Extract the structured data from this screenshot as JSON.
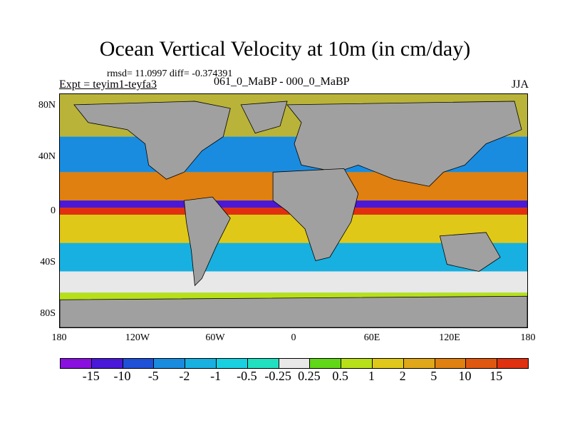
{
  "title": "Ocean Vertical Velocity at 10m (in cm/day)",
  "stats": "rmsd= 11.0997 diff= -0.374391",
  "left_label": "Expt = teyim1-teyfa3",
  "center_label": "061_0_MaBP - 000_0_MaBP",
  "right_label": "JJA",
  "lat_labels": [
    "80N",
    "40N",
    "0",
    "40S",
    "80S"
  ],
  "lon_labels": [
    "180",
    "120W",
    "60W",
    "0",
    "60E",
    "120E",
    "180"
  ],
  "colorbar": {
    "labels": [
      "-15",
      "-10",
      "-5",
      "-2",
      "-1",
      "-0.5",
      "-0.25",
      "0.25",
      "0.5",
      "1",
      "2",
      "5",
      "10",
      "15"
    ],
    "colors": [
      "#8a10e0",
      "#4a18d8",
      "#1e50d8",
      "#1a8ce0",
      "#18b0e0",
      "#18d0e0",
      "#20e0c0",
      "#e8e8e8",
      "#60d818",
      "#b8e018",
      "#e0c818",
      "#e0a818",
      "#e08010",
      "#e05810",
      "#e03010"
    ]
  },
  "land_color": "#a0a0a0"
}
